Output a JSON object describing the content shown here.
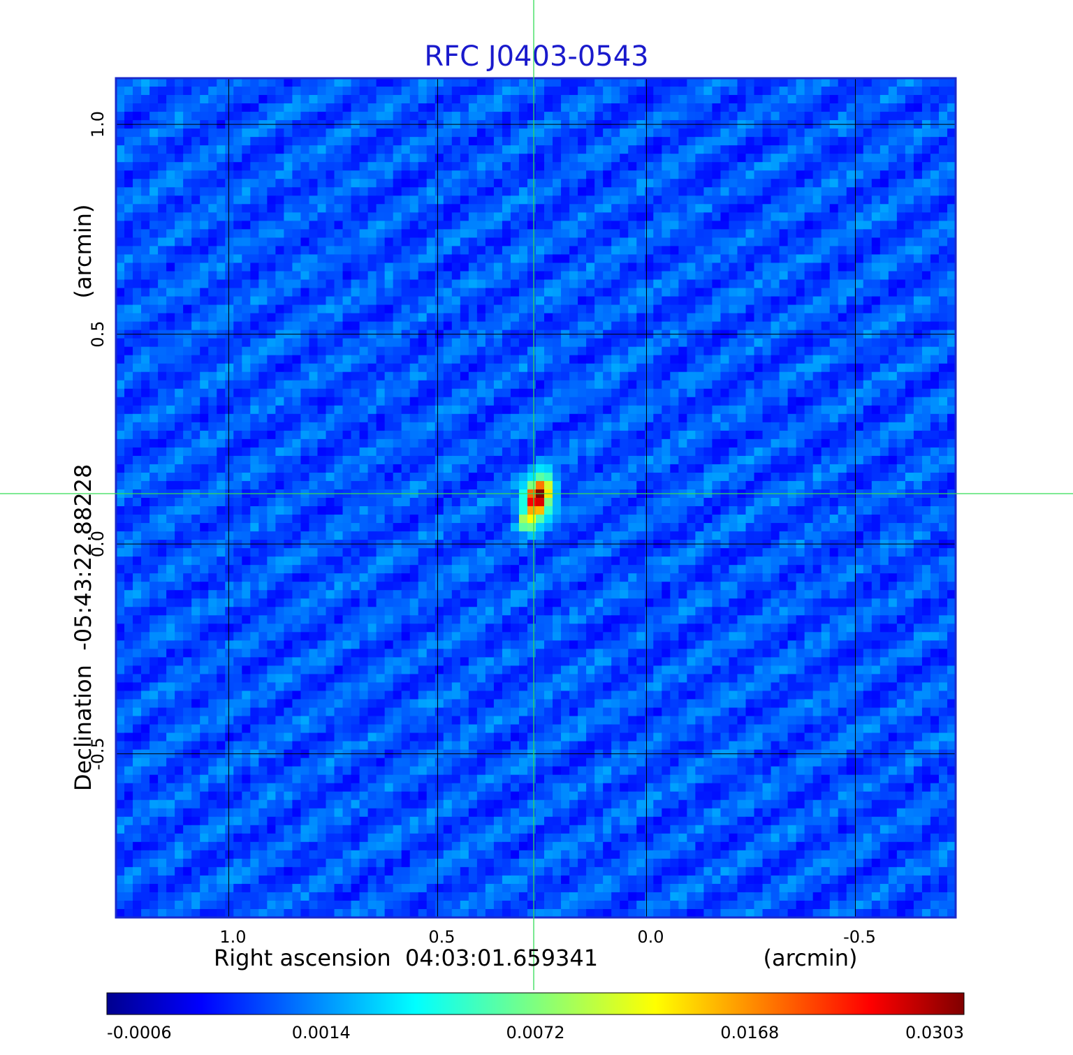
{
  "chart_data": {
    "type": "heatmap",
    "title": "RFC J0403-0543",
    "xlabel": "Right ascension  04:03:01.659341",
    "xlabel_unit": "(arcmin)",
    "ylabel": "Declination  -05:43:22.88228",
    "ylabel_unit": "(arcmin)",
    "x_ticks": [
      "1.0",
      "0.5",
      "0.0",
      "-0.5"
    ],
    "x_tick_values": [
      1.0,
      0.5,
      0.0,
      -0.5
    ],
    "y_ticks": [
      "1.0",
      "0.5",
      "0.0",
      "-0.5"
    ],
    "y_tick_values": [
      1.0,
      0.5,
      0.0,
      -0.5
    ],
    "xlim": [
      1.27,
      -0.74
    ],
    "ylim": [
      -0.89,
      1.11
    ],
    "x_reversed": true,
    "grid": true,
    "crosshair": {
      "x": 0.27,
      "y": 0.12,
      "color": "#33dd55"
    },
    "source": {
      "x": 0.27,
      "y": 0.12,
      "peak": 0.0303
    },
    "colorbar": {
      "tick_labels": [
        "-0.0006",
        "0.0014",
        "0.0072",
        "0.0168",
        "0.0303"
      ],
      "min": -0.0006,
      "max": 0.0303,
      "colormap": "jet"
    }
  },
  "colors": {
    "title": "#1a1acc",
    "background_map": "#1a52f0",
    "grid": "#000000",
    "crosshair": "#33dd55"
  }
}
